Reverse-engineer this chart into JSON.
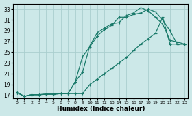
{
  "xlabel": "Humidex (Indice chaleur)",
  "xlim": [
    -0.5,
    23.5
  ],
  "ylim": [
    16.5,
    34
  ],
  "yticks": [
    17,
    19,
    21,
    23,
    25,
    27,
    29,
    31,
    33
  ],
  "xticks": [
    0,
    1,
    2,
    3,
    4,
    5,
    6,
    7,
    8,
    9,
    10,
    11,
    12,
    13,
    14,
    15,
    16,
    17,
    18,
    19,
    20,
    21,
    22,
    23
  ],
  "bg_color": "#cce8e8",
  "grid_color": "#aacece",
  "line_color": "#1a7a6a",
  "line1_y": [
    17.5,
    16.8,
    17.1,
    17.1,
    17.2,
    17.2,
    17.3,
    17.3,
    19.5,
    21.3,
    26.2,
    28.6,
    29.5,
    30.3,
    30.5,
    31.8,
    32.3,
    33.3,
    32.7,
    31.5,
    30.2,
    27.2,
    26.9,
    26.5
  ],
  "line2_y": [
    17.5,
    16.8,
    17.1,
    17.1,
    17.2,
    17.2,
    17.3,
    17.3,
    19.5,
    24.2,
    26.0,
    28.0,
    29.2,
    30.0,
    31.5,
    31.5,
    32.0,
    32.3,
    33.0,
    32.5,
    31.0,
    29.0,
    26.5,
    26.5
  ],
  "line3_y": [
    17.5,
    16.8,
    17.1,
    17.1,
    17.2,
    17.2,
    17.3,
    17.3,
    17.3,
    17.3,
    19.0,
    20.0,
    21.0,
    22.0,
    23.0,
    24.0,
    25.3,
    26.5,
    27.5,
    28.5,
    31.5,
    26.5,
    26.5,
    26.5
  ]
}
